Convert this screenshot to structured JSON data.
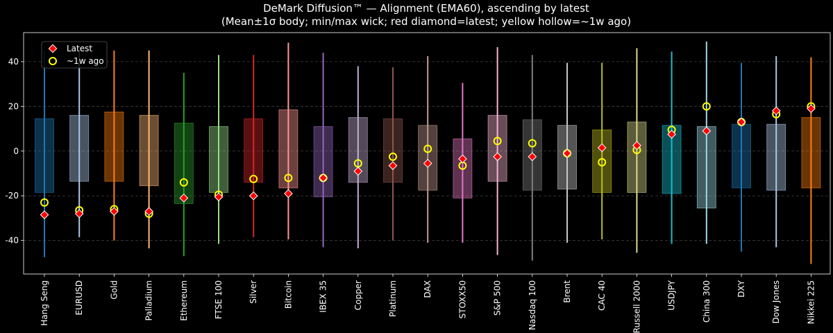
{
  "chart_data": {
    "type": "box",
    "title": "DeMark Diffusion™ — Alignment (EMA60), ascending by latest",
    "subtitle": "(Mean±1σ body; min/max wick; red diamond=latest; yellow hollow=~1w ago)",
    "xlabel": "",
    "ylabel": "",
    "ylim": [
      -55,
      53
    ],
    "yticks": [
      -40,
      -20,
      0,
      20,
      40
    ],
    "grid": "horizontal dashed",
    "legend_position": "top-left",
    "legend": [
      {
        "name": "Latest",
        "marker": "diamond",
        "color": "#ff0000"
      },
      {
        "name": "~1w ago",
        "marker": "hollow-circle",
        "color": "#ffff00"
      }
    ],
    "categories": [
      "Hang Seng",
      "EURUSD",
      "Gold",
      "Palladium",
      "Ethereum",
      "FTSE 100",
      "Silver",
      "Bitcoin",
      "IBEX 35",
      "Copper",
      "Platinum",
      "DAX",
      "STOXX50",
      "S&P 500",
      "Nasdaq 100",
      "Brent",
      "CAC 40",
      "Russell 2000",
      "USDJPY",
      "China 300",
      "DXY",
      "Dow Jones",
      "Nikkei 225"
    ],
    "colors": [
      "#1f77b4",
      "#aec7e8",
      "#ff7f0e",
      "#ffbb78",
      "#2ca02c",
      "#98df8a",
      "#d62728",
      "#ff9896",
      "#9467bd",
      "#c5b0d5",
      "#8c564b",
      "#c49c94",
      "#e377c2",
      "#f7b6d2",
      "#7f7f7f",
      "#c7c7c7",
      "#bcbd22",
      "#dbdb8d",
      "#17becf",
      "#9edae5",
      "#1f77b4",
      "#aec7e8",
      "#ff7f0e"
    ],
    "body_low": [
      -18.5,
      -13.5,
      -13.5,
      -15.5,
      -23.5,
      -18.5,
      -14,
      -16.5,
      -20.5,
      -14,
      -14,
      -17.5,
      -21,
      -13.5,
      -17.5,
      -17,
      -18.5,
      -18.5,
      -19,
      -25.5,
      -16.5,
      -17.5,
      -16.5
    ],
    "body_high": [
      14.5,
      16,
      17.5,
      16,
      12.5,
      11,
      14.5,
      18.5,
      11,
      15,
      14.5,
      11.5,
      5.5,
      16,
      14,
      11.5,
      9.5,
      13,
      11.5,
      11,
      12,
      12,
      15
    ],
    "wick_min": [
      -47.5,
      -38.5,
      -40,
      -43.5,
      -47,
      -41.5,
      -38.5,
      -39.5,
      -43,
      -43.5,
      -40,
      -41,
      -41,
      -46.5,
      -49,
      -41,
      -39.5,
      -45.5,
      -41.5,
      -41.5,
      -45,
      -43,
      -50.5
    ],
    "wick_max": [
      45,
      44.5,
      45,
      45,
      35,
      43,
      43,
      48.5,
      44,
      38,
      37.5,
      42.5,
      30.5,
      46.5,
      43,
      39.5,
      39.5,
      46,
      44.5,
      49,
      39.5,
      42.5,
      42
    ],
    "latest": [
      -28.5,
      -28,
      -27,
      -27,
      -21,
      -20.5,
      -20,
      -19,
      -12,
      -9,
      -6.5,
      -5.5,
      -3.5,
      -2.5,
      -2.5,
      -1,
      1.5,
      2.5,
      7.5,
      9,
      13,
      18,
      19
    ],
    "week_ago": [
      -23,
      -26.5,
      -26,
      -28,
      -14,
      -19.5,
      -12.5,
      -12,
      -12,
      -5.5,
      -2.5,
      1,
      -6.5,
      4.5,
      3.5,
      -1,
      -5,
      0.5,
      9.5,
      20,
      13,
      16.5,
      20
    ]
  }
}
